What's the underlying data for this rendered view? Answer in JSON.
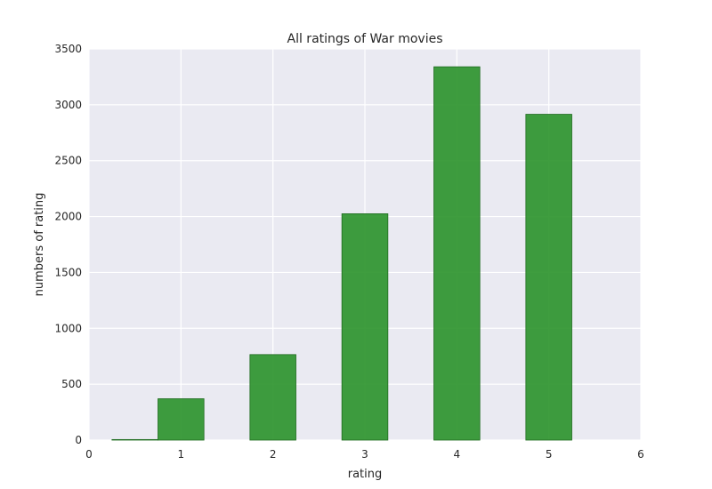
{
  "chart_data": {
    "type": "bar",
    "title": "All ratings of War movies",
    "xlabel": "rating",
    "ylabel": "numbers of rating",
    "categories": [
      "0.5",
      "1",
      "2",
      "3",
      "4",
      "5"
    ],
    "x": [
      0.5,
      1,
      2,
      3,
      4,
      5
    ],
    "values": [
      5,
      370,
      765,
      2025,
      3340,
      2915
    ],
    "xlim": [
      0,
      6
    ],
    "ylim": [
      0,
      3500
    ],
    "xticks": [
      "0",
      "1",
      "2",
      "3",
      "4",
      "5",
      "6"
    ],
    "yticks": [
      "0",
      "500",
      "1000",
      "1500",
      "2000",
      "2500",
      "3000",
      "3500"
    ],
    "grid": true,
    "colors": {
      "bar": "#2a922a",
      "bar_edge": "#1f6b1f",
      "plot_background": "#eaeaf2",
      "grid": "#ffffff"
    }
  }
}
